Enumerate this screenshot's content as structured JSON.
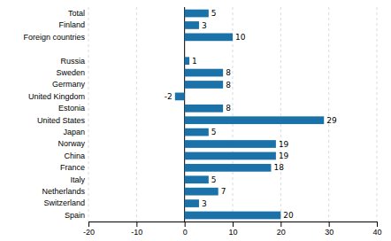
{
  "chart_data": {
    "type": "bar",
    "orientation": "horizontal",
    "categories": [
      "Total",
      "Finland",
      "Foreign countries",
      null,
      "Russia",
      "Sweden",
      "Germany",
      "United Kingdom",
      "Estonia",
      "United States",
      "Japan",
      "Norway",
      "China",
      "France",
      "Italy",
      "Netherlands",
      "Switzerland",
      "Spain"
    ],
    "values": [
      5,
      3,
      10,
      null,
      1,
      8,
      8,
      -2,
      8,
      29,
      5,
      19,
      19,
      18,
      5,
      7,
      3,
      20
    ],
    "color": "#1a72a8",
    "xlim": [
      -20,
      40
    ],
    "xticks": [
      -20,
      -10,
      0,
      10,
      20,
      30,
      40
    ],
    "grid": true,
    "data_labels": true
  }
}
